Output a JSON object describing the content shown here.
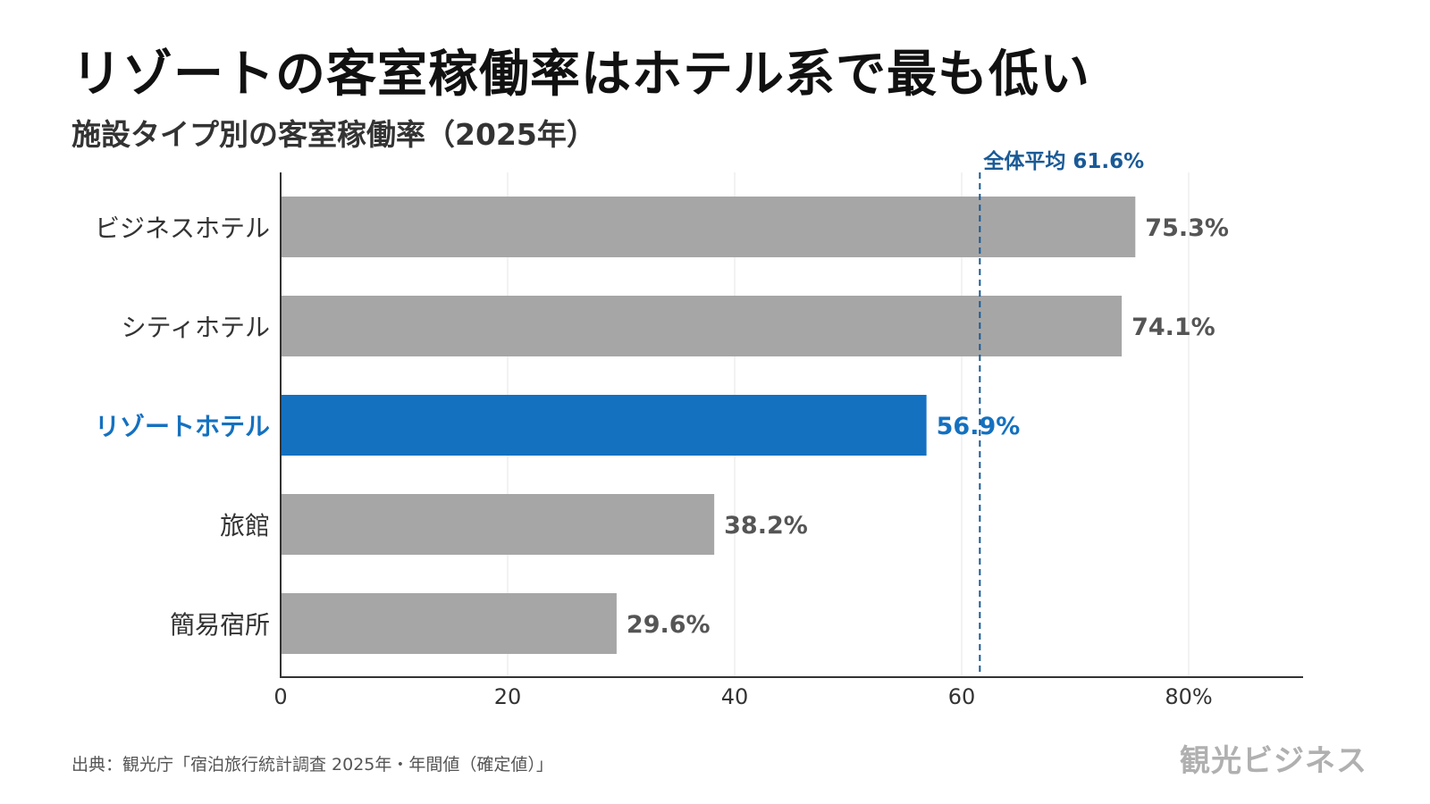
{
  "title": "リゾートの客室稼働率はホテル系で最も低い",
  "subtitle": "施設タイプ別の客室稼働率（2025年）",
  "source": "出典：観光庁「宿泊旅行統計調査 2025年・年間値（確定値）」",
  "logo": "観光ビジネス",
  "colors": {
    "bar_default": "#a6a6a6",
    "bar_highlight": "#1471c0",
    "average_line": "#1a5a96",
    "grid": "#e6e6e6",
    "axis": "#333333",
    "label_default": "#555555"
  },
  "chart_data": {
    "type": "bar",
    "orientation": "horizontal",
    "categories": [
      "ビジネスホテル",
      "シティホテル",
      "リゾートホテル",
      "旅館",
      "簡易宿所"
    ],
    "values": [
      75.3,
      74.1,
      56.9,
      38.2,
      29.6
    ],
    "value_labels": [
      "75.3%",
      "74.1%",
      "56.9%",
      "38.2%",
      "29.6%"
    ],
    "highlight_category": "リゾートホテル",
    "xlim": [
      0,
      90
    ],
    "x_ticks": [
      0,
      20,
      40,
      60,
      80
    ],
    "x_tick_labels": [
      "0",
      "20",
      "40",
      "60",
      "80%"
    ],
    "grid": true,
    "reference_line": {
      "value": 61.6,
      "label": "全体平均 61.6%",
      "style": "dashed"
    }
  }
}
